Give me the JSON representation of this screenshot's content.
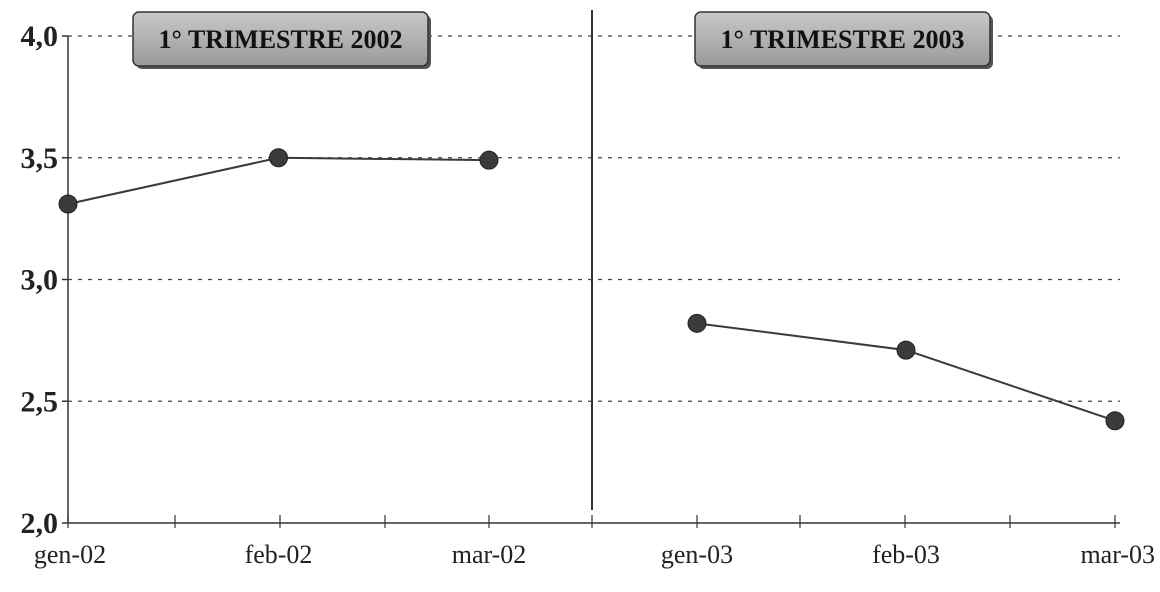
{
  "chart_data": {
    "type": "line",
    "ylim": [
      2.0,
      4.0
    ],
    "yticks": [
      "4,0",
      "3,5",
      "3,0",
      "2,5",
      "2,0"
    ],
    "ytick_values": [
      4.0,
      3.5,
      3.0,
      2.5,
      2.0
    ],
    "grid": true,
    "panels": [
      {
        "title": "1° TRIMESTRE 2002",
        "categories": [
          "gen-02",
          "feb-02",
          "mar-02"
        ],
        "values": [
          3.31,
          3.5,
          3.49
        ]
      },
      {
        "title": "1° TRIMESTRE 2003",
        "categories": [
          "gen-03",
          "feb-03",
          "mar-03"
        ],
        "values": [
          2.82,
          2.71,
          2.42
        ]
      }
    ]
  }
}
